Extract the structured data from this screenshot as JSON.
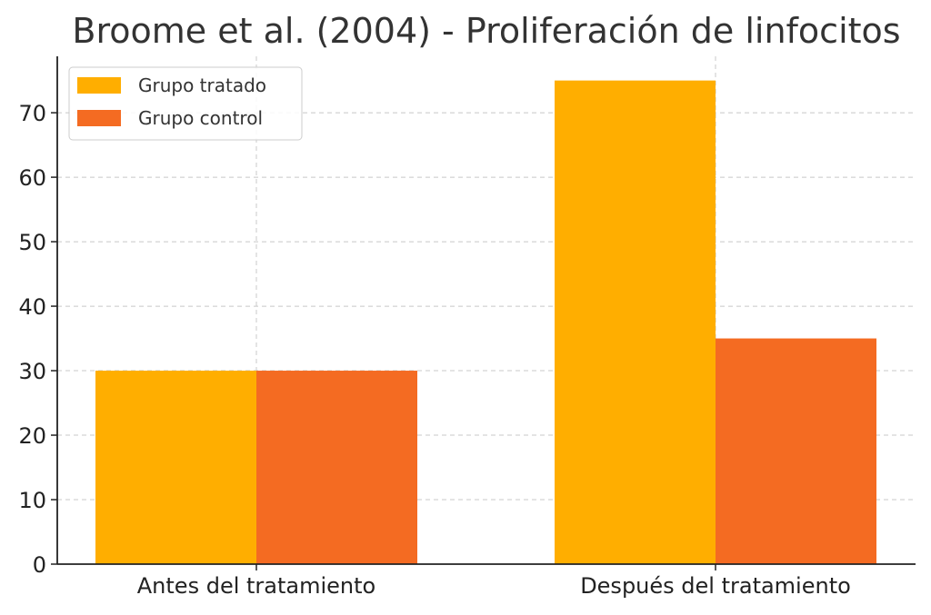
{
  "chart_data": {
    "type": "bar",
    "title": "Broome et al. (2004) - Proliferación de linfocitos",
    "categories": [
      "Antes del tratamiento",
      "Después del tratamiento"
    ],
    "series": [
      {
        "name": "Grupo tratado",
        "values": [
          30,
          75
        ],
        "color": "#FFAE00"
      },
      {
        "name": "Grupo control",
        "values": [
          30,
          35
        ],
        "color": "#F46B22"
      }
    ],
    "xlabel": "",
    "ylabel": "",
    "ylim": [
      0,
      78.75
    ],
    "yticks": [
      0,
      10,
      20,
      30,
      40,
      50,
      60,
      70
    ],
    "grid": true,
    "legend": "top-left"
  }
}
